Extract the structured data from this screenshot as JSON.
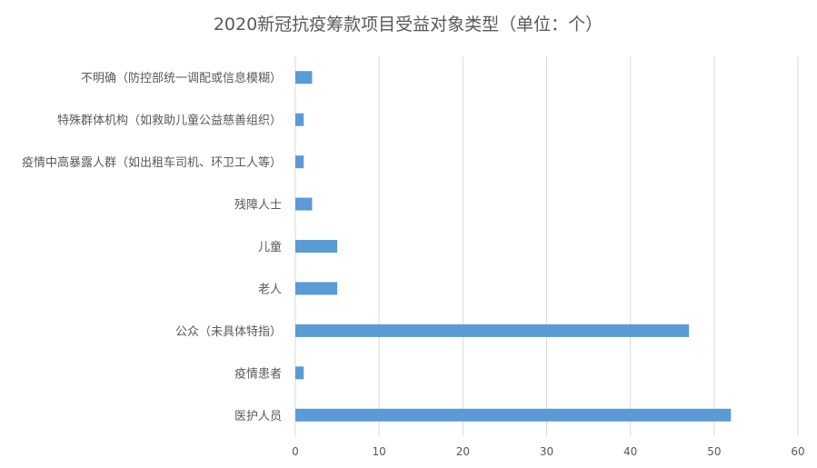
{
  "chart_data": {
    "type": "bar",
    "orientation": "horizontal",
    "title": "2020新冠抗疫筹款项目受益对象类型（单位：个）",
    "categories": [
      "不明确（防控部统一调配或信息模糊）",
      "特殊群体机构（如救助儿童公益慈善组织）",
      "疫情中高暴露人群（如出租车司机、环卫工人等）",
      "残障人士",
      "儿童",
      "老人",
      "公众（未具体特指）",
      "疫情患者",
      "医护人员"
    ],
    "values": [
      2,
      1,
      1,
      2,
      5,
      5,
      47,
      1,
      52
    ],
    "xlim": [
      0,
      60
    ],
    "xticks": [
      0,
      10,
      20,
      30,
      40,
      50,
      60
    ],
    "xlabel": "",
    "ylabel": "",
    "grid": "vertical",
    "legend": "none",
    "bar_color": "#5b9bd5"
  }
}
